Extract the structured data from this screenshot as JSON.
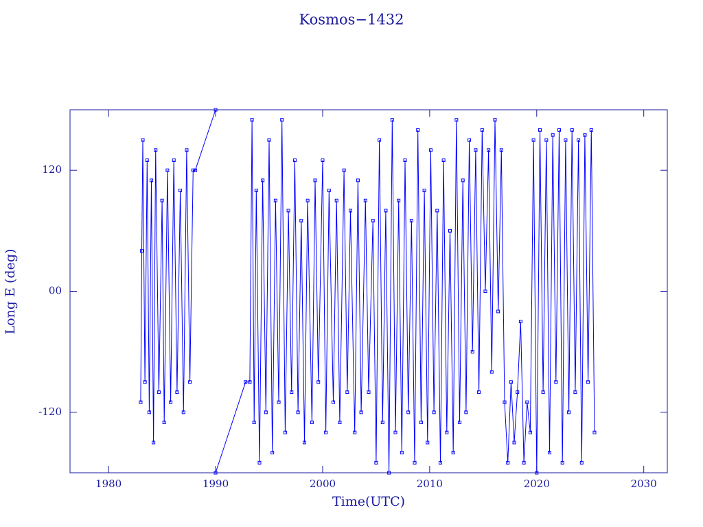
{
  "chart_data": {
    "type": "line",
    "title": "Kosmos−1432",
    "x_label": "Time(UTC)",
    "y_label": "Long E (deg)",
    "color": "#0000ff",
    "x": [
      1983.0,
      1983.1,
      1983.2,
      1983.4,
      1983.6,
      1983.8,
      1984.0,
      1984.2,
      1984.4,
      1984.7,
      1985.0,
      1985.2,
      1985.5,
      1985.8,
      1986.1,
      1986.4,
      1986.7,
      1987.0,
      1987.3,
      1987.6,
      1987.9,
      1988.1,
      1990.0,
      1990.0,
      1990.0,
      1992.8,
      1993.2,
      1993.4,
      1993.6,
      1993.8,
      1994.1,
      1994.4,
      1994.7,
      1995.0,
      1995.3,
      1995.6,
      1995.9,
      1996.2,
      1996.5,
      1996.8,
      1997.1,
      1997.4,
      1997.7,
      1998.0,
      1998.3,
      1998.6,
      1999.0,
      1999.3,
      1999.6,
      2000.0,
      2000.3,
      2000.6,
      2001.0,
      2001.3,
      2001.6,
      2002.0,
      2002.3,
      2002.6,
      2003.0,
      2003.3,
      2003.6,
      2004.0,
      2004.3,
      2004.7,
      2005.0,
      2005.3,
      2005.6,
      2005.9,
      2006.2,
      2006.5,
      2006.8,
      2007.1,
      2007.4,
      2007.7,
      2008.0,
      2008.3,
      2008.6,
      2008.9,
      2009.2,
      2009.5,
      2009.8,
      2010.1,
      2010.4,
      2010.7,
      2011.0,
      2011.3,
      2011.6,
      2011.9,
      2012.2,
      2012.5,
      2012.8,
      2013.1,
      2013.4,
      2013.7,
      2014.0,
      2014.3,
      2014.6,
      2014.9,
      2015.2,
      2015.5,
      2015.8,
      2016.1,
      2016.4,
      2016.7,
      2017.0,
      2017.3,
      2017.6,
      2017.9,
      2018.2,
      2018.5,
      2018.8,
      2019.1,
      2019.4,
      2019.7,
      2020.0,
      2020.3,
      2020.6,
      2020.9,
      2021.2,
      2021.5,
      2021.8,
      2022.1,
      2022.4,
      2022.7,
      2023.0,
      2023.3,
      2023.6,
      2023.9,
      2024.2,
      2024.5,
      2024.8,
      2025.1,
      2025.4
    ],
    "values": [
      -110,
      40,
      150,
      -90,
      130,
      -120,
      110,
      -150,
      140,
      -100,
      90,
      -130,
      120,
      -110,
      130,
      -100,
      100,
      -120,
      140,
      -90,
      120,
      120,
      180,
      null,
      -180,
      -90,
      -90,
      170,
      -130,
      100,
      -170,
      110,
      -120,
      150,
      -160,
      90,
      -110,
      170,
      -140,
      80,
      -100,
      130,
      -120,
      70,
      -150,
      90,
      -130,
      110,
      -90,
      130,
      -140,
      100,
      -110,
      90,
      -130,
      120,
      -100,
      80,
      -140,
      110,
      -120,
      90,
      -100,
      70,
      -170,
      150,
      -130,
      80,
      -180,
      170,
      -140,
      90,
      -160,
      130,
      -120,
      70,
      -170,
      160,
      -130,
      100,
      -150,
      140,
      -120,
      80,
      -170,
      130,
      -140,
      60,
      -160,
      170,
      -130,
      110,
      -120,
      150,
      -60,
      140,
      -100,
      160,
      0,
      140,
      -80,
      170,
      -20,
      140,
      -110,
      -170,
      -90,
      -150,
      -100,
      -30,
      -170,
      -110,
      -140,
      150,
      -180,
      160,
      -100,
      150,
      -160,
      155,
      -90,
      160,
      -170,
      150,
      -120,
      160,
      -100,
      150,
      -170,
      155,
      -90,
      160,
      -140
    ],
    "xlim": [
      1976.4,
      2032.2
    ],
    "ylim": [
      -180,
      180
    ],
    "xticks": [
      1980,
      1990,
      2000,
      2010,
      2020,
      2030
    ],
    "yticks": [
      -120,
      {
        "value": 0,
        "label": "00"
      },
      120
    ]
  }
}
